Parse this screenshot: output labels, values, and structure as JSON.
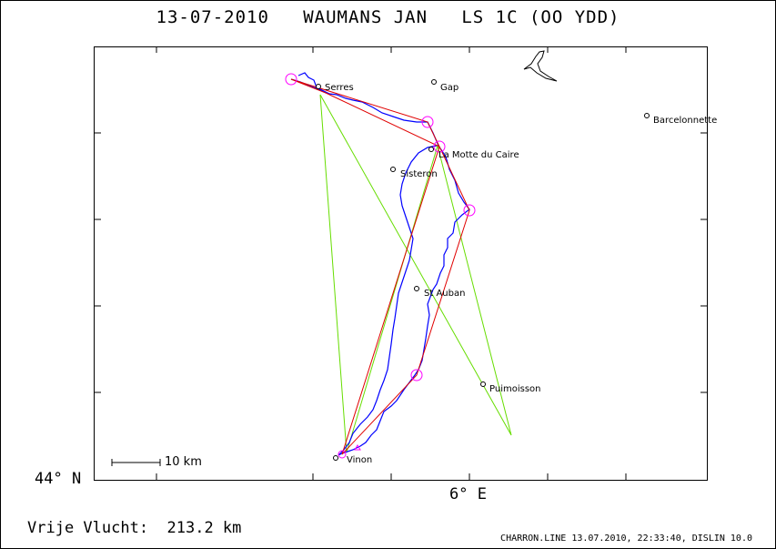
{
  "title": "13-07-2010   WAUMANS JAN   LS 1C (OO YDD)",
  "axis": {
    "lat_label": "44° N",
    "lon_label": "6° E"
  },
  "scale": {
    "label": "10 km"
  },
  "places": [
    {
      "name": "Serres"
    },
    {
      "name": "Gap"
    },
    {
      "name": "Barcelonnette"
    },
    {
      "name": "La Motte du Caire"
    },
    {
      "name": "Sisteron"
    },
    {
      "name": "St Auban"
    },
    {
      "name": "Puimoisson"
    },
    {
      "name": "Vinon"
    }
  ],
  "footer": {
    "distance": "Vrije Vlucht:  213.2 km",
    "credit": "CHARRON.LINE 13.07.2010, 22:33:40, DISLIN 10.0"
  },
  "colors": {
    "track": "#0000ff",
    "task_line": "#e00000",
    "alt_lines": "#66dd00",
    "turnpoint": "#ff00ff",
    "frame": "#000000"
  }
}
